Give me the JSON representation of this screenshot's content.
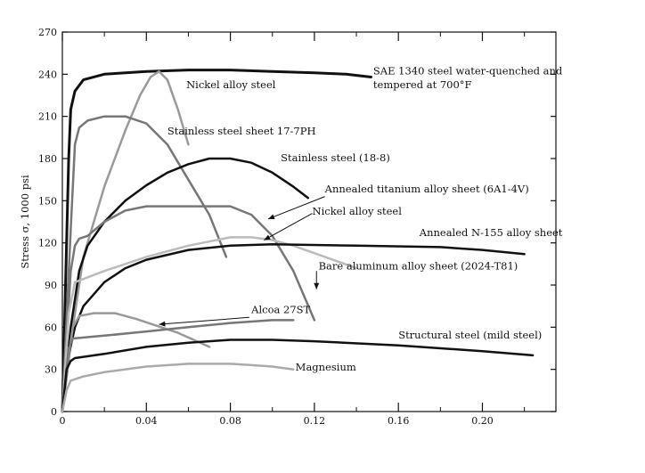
{
  "chart_data": {
    "type": "line",
    "title": "",
    "xlabel": "",
    "ylabel": "Stress σ, 1000 psi",
    "xlim": [
      0,
      0.235
    ],
    "ylim": [
      0,
      270
    ],
    "x_ticks": [
      0,
      0.04,
      0.08,
      0.12,
      0.16,
      0.2
    ],
    "x_tick_labels": [
      "0",
      "0.04",
      "0.08",
      "0.12",
      "0.16",
      "0.20"
    ],
    "y_ticks": [
      0,
      30,
      60,
      90,
      120,
      150,
      180,
      210,
      240,
      270
    ],
    "y_tick_labels": [
      "0",
      "30",
      "60",
      "90",
      "120",
      "150",
      "180",
      "210",
      "240",
      "270"
    ],
    "grid": false,
    "legend": "none",
    "series": [
      {
        "name": "SAE 1340 steel water-quenched and tempered at 700°F",
        "color": "#111111",
        "width": 3,
        "points": [
          [
            0,
            0
          ],
          [
            0.003,
            180
          ],
          [
            0.004,
            215
          ],
          [
            0.006,
            228
          ],
          [
            0.01,
            236
          ],
          [
            0.02,
            240
          ],
          [
            0.04,
            242
          ],
          [
            0.06,
            243
          ],
          [
            0.08,
            243
          ],
          [
            0.1,
            242
          ],
          [
            0.12,
            241
          ],
          [
            0.135,
            240
          ],
          [
            0.147,
            238
          ]
        ]
      },
      {
        "name": "Nickel alloy steel",
        "color": "#9a9a9a",
        "width": 2.5,
        "points": [
          [
            0,
            0
          ],
          [
            0.005,
            60
          ],
          [
            0.01,
            110
          ],
          [
            0.02,
            160
          ],
          [
            0.03,
            200
          ],
          [
            0.037,
            225
          ],
          [
            0.042,
            238
          ],
          [
            0.046,
            242
          ],
          [
            0.05,
            236
          ],
          [
            0.055,
            215
          ],
          [
            0.06,
            190
          ]
        ]
      },
      {
        "name": "Stainless steel sheet 17-7PH",
        "color": "#777777",
        "width": 2.5,
        "points": [
          [
            0,
            0
          ],
          [
            0.004,
            130
          ],
          [
            0.006,
            190
          ],
          [
            0.008,
            202
          ],
          [
            0.012,
            207
          ],
          [
            0.02,
            210
          ],
          [
            0.03,
            210
          ],
          [
            0.04,
            205
          ],
          [
            0.05,
            190
          ],
          [
            0.06,
            165
          ],
          [
            0.07,
            140
          ],
          [
            0.078,
            110
          ]
        ]
      },
      {
        "name": "Stainless steel (18-8)",
        "color": "#111111",
        "width": 2.5,
        "points": [
          [
            0,
            0
          ],
          [
            0.004,
            60
          ],
          [
            0.008,
            100
          ],
          [
            0.012,
            118
          ],
          [
            0.02,
            135
          ],
          [
            0.03,
            150
          ],
          [
            0.04,
            161
          ],
          [
            0.05,
            170
          ],
          [
            0.06,
            176
          ],
          [
            0.07,
            180
          ],
          [
            0.08,
            180
          ],
          [
            0.09,
            177
          ],
          [
            0.1,
            170
          ],
          [
            0.11,
            160
          ],
          [
            0.117,
            152
          ]
        ]
      },
      {
        "name": "Annealed titanium alloy sheet (6A1-4V)",
        "color": "#777777",
        "width": 2.5,
        "points": [
          [
            0,
            0
          ],
          [
            0.004,
            100
          ],
          [
            0.006,
            118
          ],
          [
            0.008,
            123
          ],
          [
            0.012,
            125
          ],
          [
            0.02,
            135
          ],
          [
            0.03,
            143
          ],
          [
            0.04,
            146
          ],
          [
            0.06,
            146
          ],
          [
            0.08,
            146
          ],
          [
            0.09,
            140
          ],
          [
            0.1,
            125
          ],
          [
            0.11,
            100
          ],
          [
            0.12,
            65
          ]
        ]
      },
      {
        "name": "Nickel alloy steel",
        "color": "#bbbbbb",
        "width": 2.5,
        "points": [
          [
            0,
            0
          ],
          [
            0.003,
            70
          ],
          [
            0.006,
            92
          ],
          [
            0.02,
            100
          ],
          [
            0.04,
            110
          ],
          [
            0.06,
            118
          ],
          [
            0.08,
            124
          ],
          [
            0.09,
            124
          ],
          [
            0.1,
            122
          ],
          [
            0.11,
            118
          ],
          [
            0.125,
            110
          ],
          [
            0.14,
            102
          ]
        ]
      },
      {
        "name": "Annealed N-155 alloy sheet",
        "color": "#111111",
        "width": 2.5,
        "points": [
          [
            0,
            0
          ],
          [
            0.003,
            40
          ],
          [
            0.006,
            60
          ],
          [
            0.01,
            75
          ],
          [
            0.02,
            92
          ],
          [
            0.03,
            102
          ],
          [
            0.04,
            108
          ],
          [
            0.06,
            115
          ],
          [
            0.08,
            118
          ],
          [
            0.1,
            119
          ],
          [
            0.14,
            118
          ],
          [
            0.18,
            117
          ],
          [
            0.2,
            115
          ],
          [
            0.22,
            112
          ]
        ]
      },
      {
        "name": "Bare aluminum alloy sheet (2024-T81)",
        "color": "#999999",
        "width": 2.5,
        "points": [
          [
            0,
            0
          ],
          [
            0.003,
            40
          ],
          [
            0.005,
            60
          ],
          [
            0.008,
            68
          ],
          [
            0.015,
            70
          ],
          [
            0.025,
            70
          ],
          [
            0.035,
            66
          ],
          [
            0.045,
            61
          ],
          [
            0.055,
            56
          ],
          [
            0.07,
            46
          ]
        ]
      },
      {
        "name": "Alcoa 27ST",
        "color": "#777777",
        "width": 2.5,
        "points": [
          [
            0,
            0
          ],
          [
            0.003,
            45
          ],
          [
            0.005,
            52
          ],
          [
            0.02,
            54
          ],
          [
            0.04,
            57
          ],
          [
            0.06,
            60
          ],
          [
            0.08,
            63
          ],
          [
            0.1,
            65
          ],
          [
            0.11,
            65
          ]
        ]
      },
      {
        "name": "Structural steel (mild steel)",
        "color": "#111111",
        "width": 2.5,
        "points": [
          [
            0,
            0
          ],
          [
            0.002,
            30
          ],
          [
            0.004,
            36
          ],
          [
            0.006,
            38
          ],
          [
            0.02,
            41
          ],
          [
            0.04,
            46
          ],
          [
            0.06,
            49
          ],
          [
            0.08,
            51
          ],
          [
            0.1,
            51
          ],
          [
            0.12,
            50
          ],
          [
            0.16,
            47
          ],
          [
            0.2,
            43
          ],
          [
            0.224,
            40
          ]
        ]
      },
      {
        "name": "Magnesium",
        "color": "#aaaaaa",
        "width": 2.5,
        "points": [
          [
            0,
            0
          ],
          [
            0.002,
            15
          ],
          [
            0.004,
            22
          ],
          [
            0.01,
            25
          ],
          [
            0.02,
            28
          ],
          [
            0.04,
            32
          ],
          [
            0.06,
            34
          ],
          [
            0.08,
            34
          ],
          [
            0.09,
            33
          ],
          [
            0.1,
            32
          ],
          [
            0.11,
            30
          ]
        ]
      }
    ],
    "annotations": [
      {
        "text": "SAE 1340 steel water-quenched and",
        "x": 0.148,
        "y": 240
      },
      {
        "text": "tempered at 700°F",
        "x": 0.148,
        "y": 230
      },
      {
        "text": "Nickel alloy steel",
        "x": 0.059,
        "y": 230
      },
      {
        "text": "Stainless steel sheet 17-7PH",
        "x": 0.05,
        "y": 197
      },
      {
        "text": "Stainless steel (18-8)",
        "x": 0.104,
        "y": 178
      },
      {
        "text": "Annealed titanium alloy sheet (6A1-4V)",
        "x": 0.125,
        "y": 156
      },
      {
        "text": "Nickel alloy steel",
        "x": 0.119,
        "y": 140
      },
      {
        "text": "Annealed N-155 alloy sheet",
        "x": 0.17,
        "y": 125
      },
      {
        "text": "Bare aluminum alloy sheet (2024-T81)",
        "x": 0.122,
        "y": 101
      },
      {
        "text": "Alcoa 27ST",
        "x": 0.09,
        "y": 70
      },
      {
        "text": "Structural steel (mild steel)",
        "x": 0.16,
        "y": 52
      },
      {
        "text": "Magnesium",
        "x": 0.111,
        "y": 29
      }
    ],
    "arrows": [
      {
        "from": [
          0.125,
          153
        ],
        "to": [
          0.098,
          137
        ]
      },
      {
        "from": [
          0.119,
          141
        ],
        "to": [
          0.096,
          122
        ]
      },
      {
        "from": [
          0.121,
          100
        ],
        "to": [
          0.121,
          87
        ]
      },
      {
        "from": [
          0.089,
          67
        ],
        "to": [
          0.046,
          62
        ]
      }
    ]
  }
}
